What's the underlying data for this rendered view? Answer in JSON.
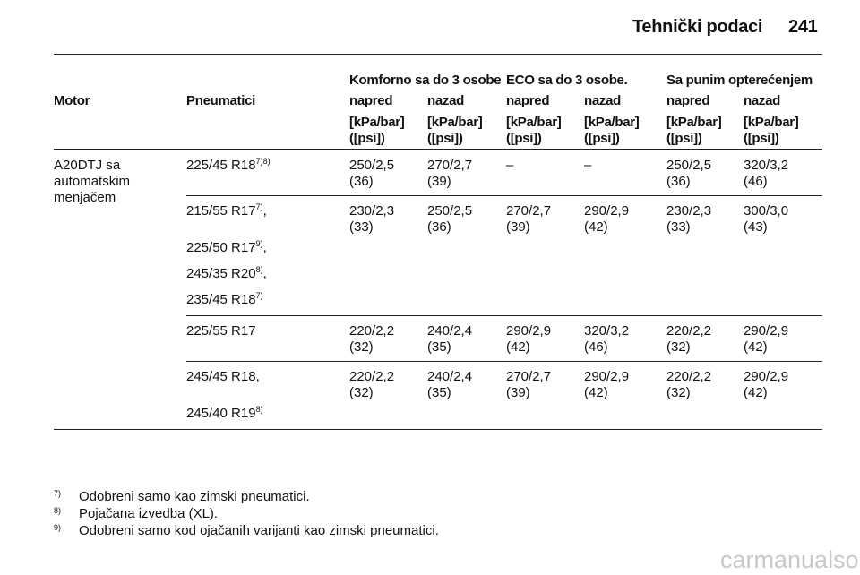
{
  "header": {
    "title": "Tehnički podaci",
    "page": "241"
  },
  "table": {
    "group_headers": [
      "Komforno sa do 3 osobe",
      "ECO sa do 3 osobe.",
      "Sa punim opterećenjem"
    ],
    "columns": [
      "Motor",
      "Pneumatici",
      "napred",
      "nazad",
      "napred",
      "nazad",
      "napred",
      "nazad"
    ],
    "unit": {
      "line1": "[kPa/bar]",
      "line2": "([psi])"
    },
    "motor": "A20DTJ sa automatskim menjačem",
    "rows": [
      {
        "tires": [
          {
            "text": "225/45 R18",
            "sup": "7)8)"
          }
        ],
        "values": [
          [
            "250/2,5",
            "(36)"
          ],
          [
            "270/2,7",
            "(39)"
          ],
          [
            "–"
          ],
          [
            "–"
          ],
          [
            "250/2,5",
            "(36)"
          ],
          [
            "320/3,2",
            "(46)"
          ]
        ]
      },
      {
        "tires": [
          {
            "text": "215/55 R17",
            "sup": "7)",
            "suffix": ","
          },
          {
            "text": "225/50 R17",
            "sup": "9)",
            "suffix": ","
          },
          {
            "text": "245/35 R20",
            "sup": "8)",
            "suffix": ","
          },
          {
            "text": "235/45 R18",
            "sup": "7)"
          }
        ],
        "values": [
          [
            "230/2,3",
            "(33)"
          ],
          [
            "250/2,5",
            "(36)"
          ],
          [
            "270/2,7",
            "(39)"
          ],
          [
            "290/2,9",
            "(42)"
          ],
          [
            "230/2,3",
            "(33)"
          ],
          [
            "300/3,0",
            "(43)"
          ]
        ]
      },
      {
        "tires": [
          {
            "text": "225/55 R17"
          }
        ],
        "values": [
          [
            "220/2,2",
            "(32)"
          ],
          [
            "240/2,4",
            "(35)"
          ],
          [
            "290/2,9",
            "(42)"
          ],
          [
            "320/3,2",
            "(46)"
          ],
          [
            "220/2,2",
            "(32)"
          ],
          [
            "290/2,9",
            "(42)"
          ]
        ]
      },
      {
        "tires": [
          {
            "text": "245/45 R18,"
          },
          {
            "text": "245/40 R19",
            "sup": "8)"
          }
        ],
        "values": [
          [
            "220/2,2",
            "(32)"
          ],
          [
            "240/2,4",
            "(35)"
          ],
          [
            "270/2,7",
            "(39)"
          ],
          [
            "290/2,9",
            "(42)"
          ],
          [
            "220/2,2",
            "(32)"
          ],
          [
            "290/2,9",
            "(42)"
          ]
        ]
      }
    ]
  },
  "footnotes": [
    {
      "mark": "7)",
      "text": "Odobreni samo kao zimski pneumatici."
    },
    {
      "mark": "8)",
      "text": "Pojačana izvedba (XL)."
    },
    {
      "mark": "9)",
      "text": "Odobreni samo kod ojačanih varijanti kao zimski pneumatici."
    }
  ],
  "watermark": "carmanualsonline.info"
}
